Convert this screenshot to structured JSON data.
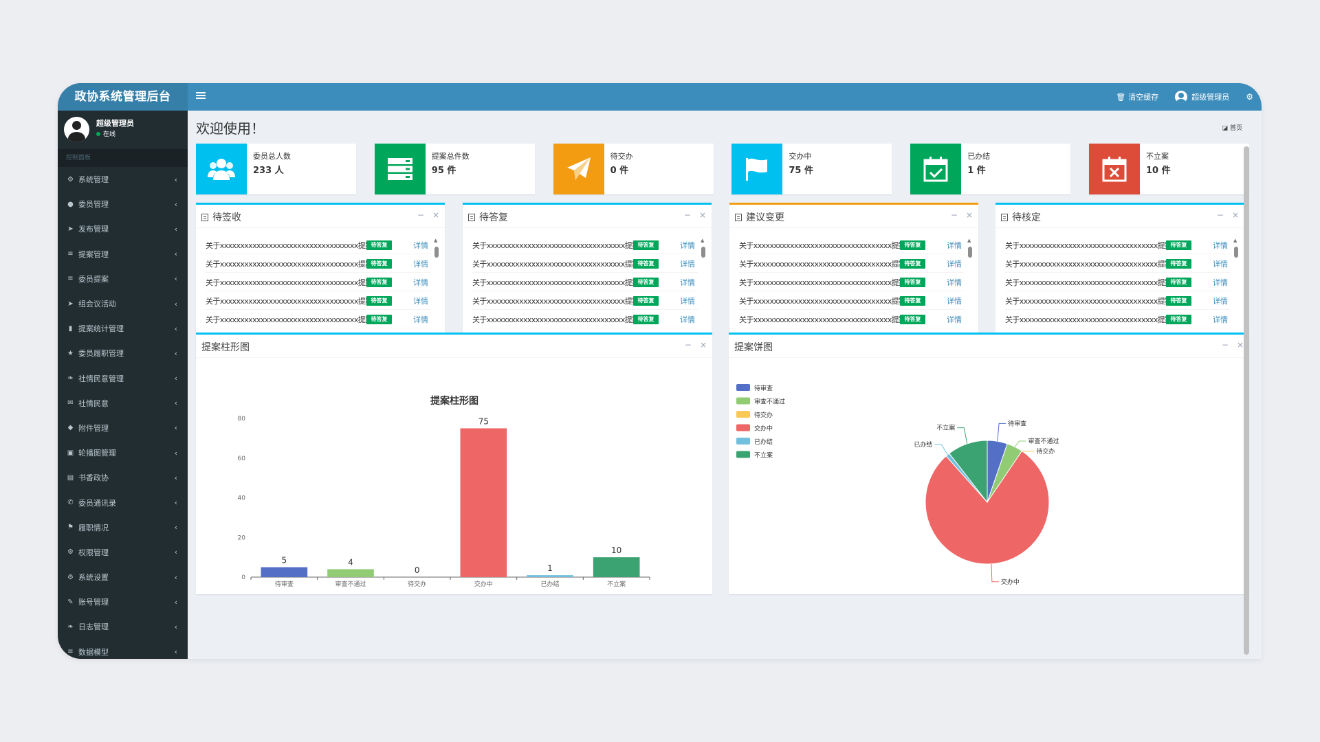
{
  "app": {
    "title": "政协系统管理后台"
  },
  "topbar": {
    "clear_cache": "清空缓存",
    "user": "超级管理员"
  },
  "user_panel": {
    "name": "超级管理员",
    "status": "在线"
  },
  "sidebar": {
    "header": "控制面板",
    "items": [
      {
        "label": "系统管理",
        "icon": "gear-icon"
      },
      {
        "label": "委员管理",
        "icon": "user-icon"
      },
      {
        "label": "发布管理",
        "icon": "send-icon"
      },
      {
        "label": "提案管理",
        "icon": "list-icon"
      },
      {
        "label": "委员提案",
        "icon": "list-icon"
      },
      {
        "label": "组会议活动",
        "icon": "send-icon"
      },
      {
        "label": "提案统计管理",
        "icon": "bar-chart-icon"
      },
      {
        "label": "委员履职管理",
        "icon": "star-icon"
      },
      {
        "label": "社情民意管理",
        "icon": "leaf-icon"
      },
      {
        "label": "社情民意",
        "icon": "envelope-icon"
      },
      {
        "label": "附件管理",
        "icon": "tag-icon"
      },
      {
        "label": "轮播图管理",
        "icon": "image-icon"
      },
      {
        "label": "书香政协",
        "icon": "book-icon"
      },
      {
        "label": "委员通讯录",
        "icon": "phone-icon"
      },
      {
        "label": "履职情况",
        "icon": "flag-icon"
      },
      {
        "label": "权限管理",
        "icon": "gears-icon"
      },
      {
        "label": "系统设置",
        "icon": "gears-icon"
      },
      {
        "label": "账号管理",
        "icon": "wrench-icon"
      },
      {
        "label": "日志管理",
        "icon": "leaf-icon"
      },
      {
        "label": "数据模型",
        "icon": "list-icon"
      }
    ]
  },
  "main": {
    "welcome": "欢迎使用！",
    "home": "首页"
  },
  "stats": [
    {
      "label": "委员总人数",
      "value": "233 人",
      "color": "#00c0ef",
      "icon": "users-icon"
    },
    {
      "label": "提案总件数",
      "value": "95 件",
      "color": "#00a65a",
      "icon": "server-icon"
    },
    {
      "label": "待交办",
      "value": "0 件",
      "color": "#f39c12",
      "icon": "paper-plane-icon"
    },
    {
      "label": "交办中",
      "value": "75 件",
      "color": "#00c0ef",
      "icon": "flag-icon"
    },
    {
      "label": "已办结",
      "value": "1 件",
      "color": "#00a65a",
      "icon": "calendar-check-icon"
    },
    {
      "label": "不立案",
      "value": "10 件",
      "color": "#dd4b39",
      "icon": "calendar-times-icon"
    }
  ],
  "panels": [
    {
      "title": "待签收"
    },
    {
      "title": "待答复"
    },
    {
      "title": "建议变更"
    },
    {
      "title": "待核定"
    }
  ],
  "list_row": {
    "text": "关于xxxxxxxxxxxxxxxxxxxxxxxxxxxxxxxxxx提案",
    "badge": "待答复",
    "detail": "详情"
  },
  "bar_panel": {
    "title": "提案柱形图"
  },
  "pie_panel": {
    "title": "提案饼图"
  },
  "chart_data": [
    {
      "type": "bar",
      "title": "提案柱形图",
      "categories": [
        "待审查",
        "审查不通过",
        "待交办",
        "交办中",
        "已办结",
        "不立案"
      ],
      "values": [
        5,
        4,
        0,
        75,
        1,
        10
      ],
      "colors": [
        "#5470c6",
        "#91cc75",
        "#fac858",
        "#ee6666",
        "#73c0de",
        "#3ba272"
      ],
      "ylim": [
        0,
        80
      ],
      "yticks": [
        0,
        20,
        40,
        60,
        80
      ]
    },
    {
      "type": "pie",
      "title": "提案饼图",
      "categories": [
        "待审查",
        "审查不通过",
        "待交办",
        "交办中",
        "已办结",
        "不立案"
      ],
      "values": [
        5,
        4,
        0,
        75,
        1,
        10
      ],
      "colors": [
        "#5470c6",
        "#91cc75",
        "#fac858",
        "#ee6666",
        "#73c0de",
        "#3ba272"
      ],
      "legend": "top-left"
    }
  ]
}
